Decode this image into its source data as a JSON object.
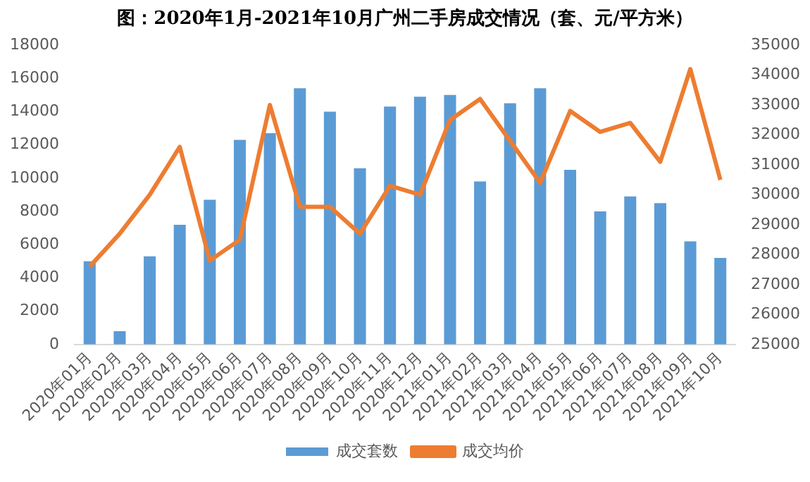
{
  "chart_data": {
    "type": "bar",
    "title": "图：2020年1月-2021年10月广州二手房成交情况（套、元/平方米）",
    "categories": [
      "2020年01月",
      "2020年02月",
      "2020年03月",
      "2020年04月",
      "2020年05月",
      "2020年06月",
      "2020年07月",
      "2020年08月",
      "2020年09月",
      "2020年10月",
      "2020年11月",
      "2020年12月",
      "2021年01月",
      "2021年02月",
      "2021年03月",
      "2021年04月",
      "2021年05月",
      "2021年06月",
      "2021年07月",
      "2021年08月",
      "2021年09月",
      "2021年10月"
    ],
    "series": [
      {
        "name": "成交套数",
        "color": "#5b9bd5",
        "values": [
          5000,
          800,
          5300,
          7200,
          8700,
          12300,
          12700,
          15400,
          14000,
          10600,
          14300,
          14900,
          15000,
          9800,
          14500,
          15400,
          10500,
          8000,
          8900,
          8500,
          6200,
          5200
        ]
      },
      {
        "name": "成交均价",
        "type": "line",
        "axis": "y2",
        "color": "#ed7d31",
        "values": [
          27600,
          28700,
          30000,
          31600,
          27800,
          28500,
          33000,
          29600,
          29600,
          28700,
          30300,
          30000,
          32500,
          33200,
          31800,
          30400,
          32800,
          32100,
          32400,
          31100,
          34200,
          30500
        ]
      }
    ],
    "ylim": [
      0,
      18000
    ],
    "yticks": [
      0,
      2000,
      4000,
      6000,
      8000,
      10000,
      12000,
      14000,
      16000,
      18000
    ],
    "y2lim": [
      25000,
      35000
    ],
    "y2ticks": [
      25000,
      26000,
      27000,
      28000,
      29000,
      30000,
      31000,
      32000,
      33000,
      34000,
      35000
    ],
    "grid": false,
    "legend": "bottom",
    "marker": "none",
    "line_style": "solid"
  }
}
